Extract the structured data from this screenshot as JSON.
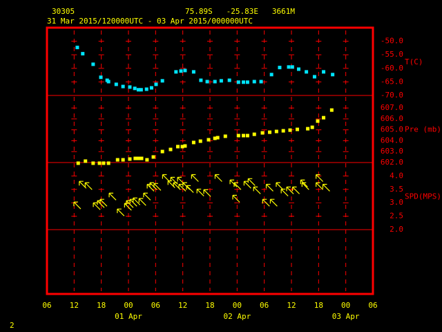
{
  "header": {
    "station": "30305",
    "location": "75.89S   -25.83E   3661M",
    "period": "31 Mar 2015/120000UTC - 03 Apr 2015/000000UTC",
    "page": "2"
  },
  "xaxis": {
    "xlim": [
      0,
      72
    ],
    "xticks": [
      {
        "value": 0,
        "label": "06"
      },
      {
        "value": 6,
        "label": "12"
      },
      {
        "value": 12,
        "label": "18"
      },
      {
        "value": 18,
        "label": "00"
      },
      {
        "value": 24,
        "label": "06"
      },
      {
        "value": 30,
        "label": "12"
      },
      {
        "value": 36,
        "label": "18"
      },
      {
        "value": 42,
        "label": "00"
      },
      {
        "value": 48,
        "label": "06"
      },
      {
        "value": 54,
        "label": "12"
      },
      {
        "value": 60,
        "label": "18"
      },
      {
        "value": 66,
        "label": "00"
      },
      {
        "value": 72,
        "label": "06"
      }
    ],
    "dates": [
      {
        "value": 18,
        "label": "01 Apr"
      },
      {
        "value": 42,
        "label": "02 Apr"
      },
      {
        "value": 66,
        "label": "03 Apr"
      }
    ]
  },
  "chart_data": [
    {
      "type": "scatter",
      "ylabel": "T(C)",
      "color": "#00e5ff",
      "ylim": [
        -70,
        -45
      ],
      "yticks": [
        {
          "value": -50,
          "label": "-50.0"
        },
        {
          "value": -55,
          "label": "-55.0"
        },
        {
          "value": -60,
          "label": "-60.0"
        },
        {
          "value": -65,
          "label": "-65.0"
        },
        {
          "value": -70,
          "label": "-70.0"
        }
      ],
      "x": [
        6.7,
        7.9,
        10.2,
        11.9,
        13.3,
        13.6,
        15.3,
        16.8,
        18.3,
        19.4,
        20.2,
        20.8,
        22.0,
        23.1,
        24.1,
        25.5,
        28.5,
        29.6,
        30.5,
        32.4,
        34.0,
        35.4,
        37.1,
        38.5,
        40.3,
        42.3,
        43.4,
        44.3,
        45.8,
        47.3,
        49.6,
        51.4,
        53.4,
        54.2,
        55.6,
        57.3,
        59.1,
        61.1,
        63.1
      ],
      "values": [
        -52.3,
        -54.6,
        -58.5,
        -63.3,
        -64.4,
        -64.9,
        -65.9,
        -66.7,
        -66.9,
        -67.4,
        -67.9,
        -67.9,
        -67.7,
        -67.2,
        -65.9,
        -64.6,
        -61.3,
        -61.0,
        -60.8,
        -61.3,
        -64.4,
        -64.9,
        -64.9,
        -64.6,
        -64.4,
        -65.1,
        -65.1,
        -65.1,
        -64.9,
        -64.9,
        -62.3,
        -59.7,
        -59.5,
        -59.5,
        -60.3,
        -61.3,
        -63.1,
        -61.3,
        -62.3
      ]
    },
    {
      "type": "scatter",
      "ylabel": "Pre (mb)",
      "color": "#ffff00",
      "ylim": [
        602,
        608.15
      ],
      "yticks": [
        {
          "value": 607,
          "label": "607.0"
        },
        {
          "value": 606,
          "label": "606.0"
        },
        {
          "value": 605,
          "label": "605.0"
        },
        {
          "value": 604,
          "label": "604.0"
        },
        {
          "value": 603,
          "label": "603.0"
        },
        {
          "value": 602,
          "label": "602.0"
        }
      ],
      "x": [
        6.9,
        8.5,
        10.2,
        11.6,
        12.5,
        13.6,
        15.6,
        16.8,
        18.3,
        19.5,
        20.2,
        20.9,
        22.1,
        23.5,
        25.5,
        27.3,
        28.9,
        29.9,
        30.5,
        32.4,
        33.9,
        35.7,
        37.1,
        37.7,
        39.4,
        42.3,
        43.4,
        44.3,
        45.8,
        47.6,
        49.2,
        50.7,
        52.2,
        53.7,
        55.3,
        57.6,
        58.6,
        59.8,
        61.1,
        62.9
      ],
      "values": [
        601.94,
        602.13,
        601.94,
        601.94,
        601.94,
        601.94,
        602.25,
        602.25,
        602.32,
        602.38,
        602.38,
        602.38,
        602.25,
        602.51,
        603.01,
        603.2,
        603.46,
        603.46,
        603.52,
        603.84,
        603.96,
        604.09,
        604.22,
        604.28,
        604.41,
        604.47,
        604.47,
        604.47,
        604.59,
        604.72,
        604.78,
        604.85,
        604.91,
        604.97,
        605.04,
        605.1,
        605.23,
        605.8,
        606.11,
        606.81
      ]
    },
    {
      "type": "wind",
      "ylabel": "SPD(MPS)",
      "color": "#ffff00",
      "ylim": [
        2,
        4.5
      ],
      "yticks": [
        {
          "value": 4,
          "label": "4.0"
        },
        {
          "value": 3.5,
          "label": "3.5"
        },
        {
          "value": 3,
          "label": "3.0"
        },
        {
          "value": 2.5,
          "label": "2.5"
        },
        {
          "value": 2,
          "label": "2.0"
        }
      ],
      "x": [
        6.7,
        7.9,
        9.2,
        11.0,
        11.9,
        12.5,
        14.5,
        16.3,
        17.9,
        18.3,
        19.1,
        19.8,
        21.1,
        22.1,
        22.9,
        23.5,
        24.4,
        26.3,
        27.5,
        28.1,
        28.7,
        29.6,
        29.9,
        30.8,
        31.6,
        32.7,
        33.9,
        35.4,
        37.9,
        41.2,
        41.8,
        42.1,
        44.3,
        45.2,
        46.4,
        48.4,
        49.2,
        50.1,
        51.4,
        52.5,
        53.7,
        55.0,
        56.8,
        57.1,
        60.2,
        60.2,
        61.7
      ],
      "values": [
        2.9,
        3.67,
        3.62,
        2.87,
        2.95,
        3.0,
        3.23,
        2.64,
        2.85,
        2.95,
        3.0,
        3.05,
        3.03,
        3.23,
        3.56,
        3.62,
        3.59,
        3.92,
        3.69,
        3.82,
        3.62,
        3.82,
        3.56,
        3.62,
        3.51,
        3.92,
        3.38,
        3.36,
        3.92,
        3.72,
        3.15,
        3.62,
        3.67,
        3.77,
        3.46,
        3.0,
        3.56,
        3.0,
        3.62,
        3.38,
        3.46,
        3.46,
        3.72,
        3.62,
        3.92,
        3.62,
        3.56
      ]
    }
  ]
}
